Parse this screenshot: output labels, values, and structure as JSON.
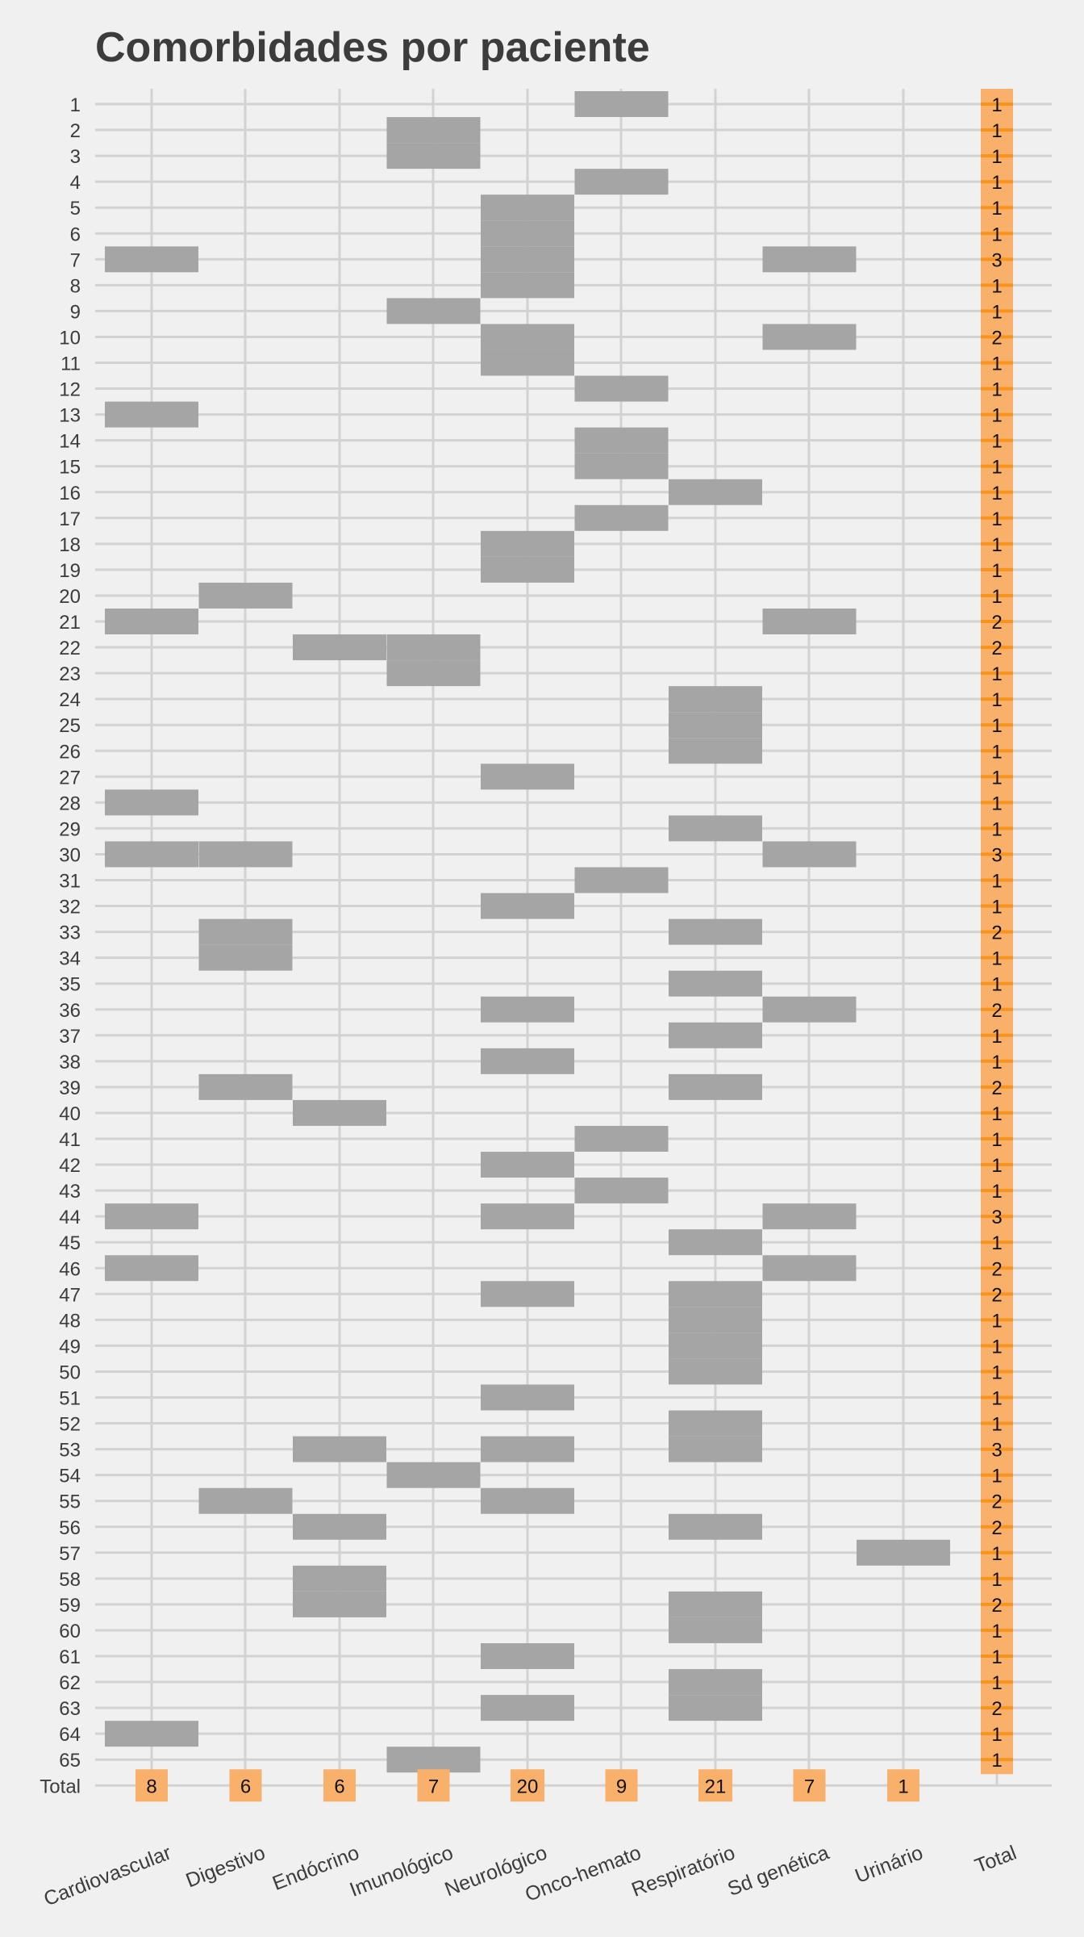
{
  "chart_data": {
    "type": "heatmap",
    "title": "Comorbidades por paciente",
    "xlabel": "",
    "ylabel": "",
    "categories": [
      "Cardiovascular",
      "Digestivo",
      "Endócrino",
      "Imunológico",
      "Neurológico",
      "Onco-hemato",
      "Respiratório",
      "Sd genética",
      "Urinário"
    ],
    "total_label": "Total",
    "patients": [
      "1",
      "2",
      "3",
      "4",
      "5",
      "6",
      "7",
      "8",
      "9",
      "10",
      "11",
      "12",
      "13",
      "14",
      "15",
      "16",
      "17",
      "18",
      "19",
      "20",
      "21",
      "22",
      "23",
      "24",
      "25",
      "26",
      "27",
      "28",
      "29",
      "30",
      "31",
      "32",
      "33",
      "34",
      "35",
      "36",
      "37",
      "38",
      "39",
      "40",
      "41",
      "42",
      "43",
      "44",
      "45",
      "46",
      "47",
      "48",
      "49",
      "50",
      "51",
      "52",
      "53",
      "54",
      "55",
      "56",
      "57",
      "58",
      "59",
      "60",
      "61",
      "62",
      "63",
      "64",
      "65"
    ],
    "row_totals": [
      1,
      1,
      1,
      1,
      1,
      1,
      3,
      1,
      1,
      2,
      1,
      1,
      1,
      1,
      1,
      1,
      1,
      1,
      1,
      1,
      2,
      2,
      1,
      1,
      1,
      1,
      1,
      1,
      1,
      3,
      1,
      1,
      2,
      1,
      1,
      2,
      1,
      1,
      2,
      1,
      1,
      1,
      1,
      3,
      1,
      2,
      2,
      1,
      1,
      1,
      1,
      1,
      3,
      1,
      2,
      2,
      1,
      1,
      2,
      1,
      1,
      1,
      2,
      1,
      1
    ],
    "column_totals": [
      8,
      6,
      6,
      7,
      20,
      9,
      21,
      7,
      1
    ],
    "matrix": [
      [
        0,
        0,
        0,
        0,
        0,
        1,
        0,
        0,
        0
      ],
      [
        0,
        0,
        0,
        1,
        0,
        0,
        0,
        0,
        0
      ],
      [
        0,
        0,
        0,
        1,
        0,
        0,
        0,
        0,
        0
      ],
      [
        0,
        0,
        0,
        0,
        0,
        1,
        0,
        0,
        0
      ],
      [
        0,
        0,
        0,
        0,
        1,
        0,
        0,
        0,
        0
      ],
      [
        0,
        0,
        0,
        0,
        1,
        0,
        0,
        0,
        0
      ],
      [
        1,
        0,
        0,
        0,
        1,
        0,
        0,
        1,
        0
      ],
      [
        0,
        0,
        0,
        0,
        1,
        0,
        0,
        0,
        0
      ],
      [
        0,
        0,
        0,
        1,
        0,
        0,
        0,
        0,
        0
      ],
      [
        0,
        0,
        0,
        0,
        1,
        0,
        0,
        1,
        0
      ],
      [
        0,
        0,
        0,
        0,
        1,
        0,
        0,
        0,
        0
      ],
      [
        0,
        0,
        0,
        0,
        0,
        1,
        0,
        0,
        0
      ],
      [
        1,
        0,
        0,
        0,
        0,
        0,
        0,
        0,
        0
      ],
      [
        0,
        0,
        0,
        0,
        0,
        1,
        0,
        0,
        0
      ],
      [
        0,
        0,
        0,
        0,
        0,
        1,
        0,
        0,
        0
      ],
      [
        0,
        0,
        0,
        0,
        0,
        0,
        1,
        0,
        0
      ],
      [
        0,
        0,
        0,
        0,
        0,
        1,
        0,
        0,
        0
      ],
      [
        0,
        0,
        0,
        0,
        1,
        0,
        0,
        0,
        0
      ],
      [
        0,
        0,
        0,
        0,
        1,
        0,
        0,
        0,
        0
      ],
      [
        0,
        1,
        0,
        0,
        0,
        0,
        0,
        0,
        0
      ],
      [
        1,
        0,
        0,
        0,
        0,
        0,
        0,
        1,
        0
      ],
      [
        0,
        0,
        1,
        1,
        0,
        0,
        0,
        0,
        0
      ],
      [
        0,
        0,
        0,
        1,
        0,
        0,
        0,
        0,
        0
      ],
      [
        0,
        0,
        0,
        0,
        0,
        0,
        1,
        0,
        0
      ],
      [
        0,
        0,
        0,
        0,
        0,
        0,
        1,
        0,
        0
      ],
      [
        0,
        0,
        0,
        0,
        0,
        0,
        1,
        0,
        0
      ],
      [
        0,
        0,
        0,
        0,
        1,
        0,
        0,
        0,
        0
      ],
      [
        1,
        0,
        0,
        0,
        0,
        0,
        0,
        0,
        0
      ],
      [
        0,
        0,
        0,
        0,
        0,
        0,
        1,
        0,
        0
      ],
      [
        1,
        1,
        0,
        0,
        0,
        0,
        0,
        1,
        0
      ],
      [
        0,
        0,
        0,
        0,
        0,
        1,
        0,
        0,
        0
      ],
      [
        0,
        0,
        0,
        0,
        1,
        0,
        0,
        0,
        0
      ],
      [
        0,
        1,
        0,
        0,
        0,
        0,
        1,
        0,
        0
      ],
      [
        0,
        1,
        0,
        0,
        0,
        0,
        0,
        0,
        0
      ],
      [
        0,
        0,
        0,
        0,
        0,
        0,
        1,
        0,
        0
      ],
      [
        0,
        0,
        0,
        0,
        1,
        0,
        0,
        1,
        0
      ],
      [
        0,
        0,
        0,
        0,
        0,
        0,
        1,
        0,
        0
      ],
      [
        0,
        0,
        0,
        0,
        1,
        0,
        0,
        0,
        0
      ],
      [
        0,
        1,
        0,
        0,
        0,
        0,
        1,
        0,
        0
      ],
      [
        0,
        0,
        1,
        0,
        0,
        0,
        0,
        0,
        0
      ],
      [
        0,
        0,
        0,
        0,
        0,
        1,
        0,
        0,
        0
      ],
      [
        0,
        0,
        0,
        0,
        1,
        0,
        0,
        0,
        0
      ],
      [
        0,
        0,
        0,
        0,
        0,
        1,
        0,
        0,
        0
      ],
      [
        1,
        0,
        0,
        0,
        1,
        0,
        0,
        1,
        0
      ],
      [
        0,
        0,
        0,
        0,
        0,
        0,
        1,
        0,
        0
      ],
      [
        1,
        0,
        0,
        0,
        0,
        0,
        0,
        1,
        0
      ],
      [
        0,
        0,
        0,
        0,
        1,
        0,
        1,
        0,
        0
      ],
      [
        0,
        0,
        0,
        0,
        0,
        0,
        1,
        0,
        0
      ],
      [
        0,
        0,
        0,
        0,
        0,
        0,
        1,
        0,
        0
      ],
      [
        0,
        0,
        0,
        0,
        0,
        0,
        1,
        0,
        0
      ],
      [
        0,
        0,
        0,
        0,
        1,
        0,
        0,
        0,
        0
      ],
      [
        0,
        0,
        0,
        0,
        0,
        0,
        1,
        0,
        0
      ],
      [
        0,
        0,
        1,
        0,
        1,
        0,
        1,
        0,
        0
      ],
      [
        0,
        0,
        0,
        1,
        0,
        0,
        0,
        0,
        0
      ],
      [
        0,
        1,
        0,
        0,
        1,
        0,
        0,
        0,
        0
      ],
      [
        0,
        0,
        1,
        0,
        0,
        0,
        1,
        0,
        0
      ],
      [
        0,
        0,
        0,
        0,
        0,
        0,
        0,
        0,
        1
      ],
      [
        0,
        0,
        1,
        0,
        0,
        0,
        0,
        0,
        0
      ],
      [
        0,
        0,
        1,
        0,
        0,
        0,
        1,
        0,
        0
      ],
      [
        0,
        0,
        0,
        0,
        0,
        0,
        1,
        0,
        0
      ],
      [
        0,
        0,
        0,
        0,
        1,
        0,
        0,
        0,
        0
      ],
      [
        0,
        0,
        0,
        0,
        0,
        0,
        1,
        0,
        0
      ],
      [
        0,
        0,
        0,
        0,
        1,
        0,
        1,
        0,
        0
      ],
      [
        1,
        0,
        0,
        0,
        0,
        0,
        0,
        0,
        0
      ],
      [
        0,
        0,
        0,
        1,
        0,
        0,
        0,
        0,
        0
      ]
    ],
    "grid": true,
    "colors": {
      "background": "#f0f0f0",
      "cell": "#a5a5a5",
      "total_fill": "#f9b06b",
      "total_row_highlight": "#f7941d",
      "grid": "#d2d2d2",
      "text": "#3c3c3c"
    }
  }
}
